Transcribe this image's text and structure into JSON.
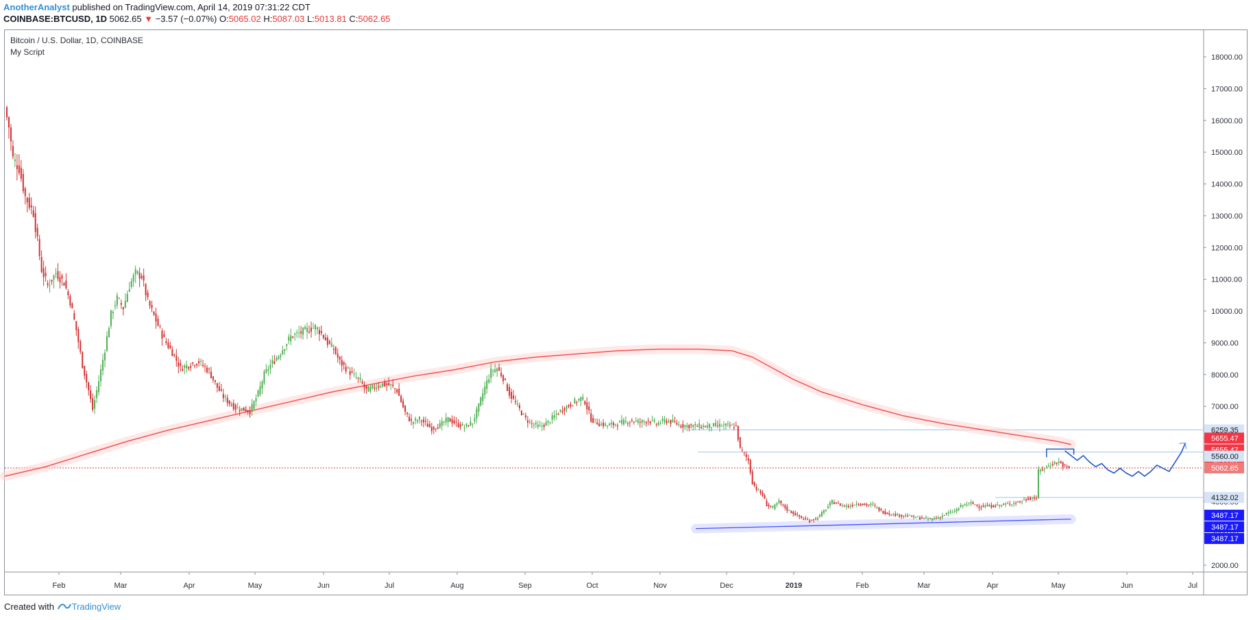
{
  "header": {
    "author": "AnotherAnalyst",
    "published": " published on TradingView.com, April 14, 2019 07:31:22 CDT",
    "symbol": "COINBASE:BTCUSD, 1D",
    "last": "5062.65",
    "change": "−3.57 (−0.07%)",
    "o_label": "O:",
    "o_value": "5065.02",
    "h_label": "H:",
    "h_value": "5087.03",
    "l_label": "L:",
    "l_value": "5013.81",
    "c_label": "C:",
    "c_value": "5062.65"
  },
  "legend": {
    "title": "Bitcoin / U.S. Dollar, 1D, COINBASE",
    "script": "My Script"
  },
  "footer": {
    "created_with": "Created with",
    "brand": "TradingView"
  },
  "colors": {
    "up": "#4caf50",
    "down": "#d32f2f",
    "ma": "#ef5350",
    "support": "#3f51ff",
    "projection": "#1e55c8",
    "price_line": "#e53935",
    "tag_red": "#f23645",
    "tag_blue": "#1a1aff",
    "tag_light": "#d6e4f5"
  },
  "chart_data": {
    "type": "candlestick",
    "title": "Bitcoin / U.S. Dollar, 1D, COINBASE",
    "x_labels": [
      "Feb",
      "Mar",
      "Apr",
      "May",
      "Jun",
      "Jul",
      "Aug",
      "Sep",
      "Oct",
      "Nov",
      "Dec",
      "2019",
      "Feb",
      "Mar",
      "Apr",
      "May",
      "Jun",
      "Jul"
    ],
    "x_label_bold": "2019",
    "y_ticks": [
      2000,
      3000,
      4000,
      5000,
      6000,
      7000,
      8000,
      9000,
      10000,
      11000,
      12000,
      13000,
      14000,
      15000,
      16000,
      17000,
      18000
    ],
    "y_tick_labels": [
      "2000.00",
      "3000.00",
      "4000.00",
      "5000.00",
      "6000.00",
      "7000.00",
      "8000.00",
      "9000.00",
      "10000.00",
      "11000.00",
      "12000.00",
      "13000.00",
      "14000.00",
      "15000.00",
      "16000.00",
      "17000.00",
      "18000.00"
    ],
    "ylim": [
      1900,
      18900
    ],
    "x_range_days": [
      0,
      553
    ],
    "price_close_anchors": [
      [
        0,
        16400
      ],
      [
        2,
        15800
      ],
      [
        4,
        14800
      ],
      [
        7,
        14500
      ],
      [
        10,
        13600
      ],
      [
        14,
        13100
      ],
      [
        18,
        11300
      ],
      [
        21,
        10800
      ],
      [
        25,
        11200
      ],
      [
        29,
        10900
      ],
      [
        32,
        10300
      ],
      [
        35,
        9400
      ],
      [
        38,
        8300
      ],
      [
        41,
        7500
      ],
      [
        43,
        6900
      ],
      [
        46,
        7800
      ],
      [
        49,
        8800
      ],
      [
        52,
        9900
      ],
      [
        55,
        10400
      ],
      [
        58,
        10100
      ],
      [
        61,
        10800
      ],
      [
        64,
        11200
      ],
      [
        67,
        11100
      ],
      [
        70,
        10300
      ],
      [
        74,
        9700
      ],
      [
        78,
        9100
      ],
      [
        82,
        8700
      ],
      [
        86,
        8200
      ],
      [
        90,
        8300
      ],
      [
        95,
        8400
      ],
      [
        100,
        8100
      ],
      [
        104,
        7600
      ],
      [
        107,
        7300
      ],
      [
        110,
        7100
      ],
      [
        113,
        6950
      ],
      [
        117,
        6900
      ],
      [
        120,
        6850
      ],
      [
        124,
        7400
      ],
      [
        127,
        8000
      ],
      [
        130,
        8300
      ],
      [
        134,
        8600
      ],
      [
        137,
        8900
      ],
      [
        140,
        9200
      ],
      [
        144,
        9300
      ],
      [
        148,
        9400
      ],
      [
        152,
        9500
      ],
      [
        155,
        9300
      ],
      [
        158,
        9000
      ],
      [
        161,
        8800
      ],
      [
        164,
        8400
      ],
      [
        167,
        8200
      ],
      [
        170,
        8000
      ],
      [
        174,
        7800
      ],
      [
        177,
        7500
      ],
      [
        181,
        7600
      ],
      [
        185,
        7700
      ],
      [
        189,
        7650
      ],
      [
        192,
        7500
      ],
      [
        196,
        6800
      ],
      [
        199,
        6500
      ],
      [
        203,
        6600
      ],
      [
        206,
        6450
      ],
      [
        209,
        6300
      ],
      [
        213,
        6400
      ],
      [
        217,
        6600
      ],
      [
        221,
        6450
      ],
      [
        225,
        6350
      ],
      [
        229,
        6500
      ],
      [
        232,
        7000
      ],
      [
        235,
        7600
      ],
      [
        238,
        8100
      ],
      [
        241,
        8200
      ],
      [
        244,
        7900
      ],
      [
        247,
        7400
      ],
      [
        251,
        7000
      ],
      [
        255,
        6600
      ],
      [
        258,
        6450
      ],
      [
        262,
        6350
      ],
      [
        266,
        6500
      ],
      [
        270,
        6750
      ],
      [
        274,
        6950
      ],
      [
        278,
        7100
      ],
      [
        282,
        7250
      ],
      [
        284,
        7150
      ],
      [
        287,
        6600
      ],
      [
        291,
        6450
      ],
      [
        295,
        6400
      ],
      [
        299,
        6450
      ],
      [
        303,
        6500
      ],
      [
        307,
        6550
      ],
      [
        311,
        6500
      ],
      [
        315,
        6560
      ],
      [
        319,
        6450
      ],
      [
        323,
        6550
      ],
      [
        327,
        6500
      ],
      [
        331,
        6400
      ],
      [
        335,
        6390
      ],
      [
        339,
        6380
      ],
      [
        343,
        6370
      ],
      [
        347,
        6390
      ],
      [
        351,
        6400
      ],
      [
        355,
        6380
      ],
      [
        358,
        6360
      ],
      [
        360,
        5650
      ],
      [
        362,
        5500
      ],
      [
        364,
        5300
      ],
      [
        366,
        4600
      ],
      [
        368,
        4400
      ],
      [
        371,
        4200
      ],
      [
        373,
        3900
      ],
      [
        376,
        3800
      ],
      [
        379,
        4000
      ],
      [
        383,
        3750
      ],
      [
        387,
        3600
      ],
      [
        391,
        3450
      ],
      [
        394,
        3400
      ],
      [
        398,
        3500
      ],
      [
        401,
        3700
      ],
      [
        405,
        4000
      ],
      [
        409,
        3900
      ],
      [
        413,
        3850
      ],
      [
        417,
        3950
      ],
      [
        421,
        3900
      ],
      [
        425,
        3900
      ],
      [
        429,
        3700
      ],
      [
        433,
        3620
      ],
      [
        437,
        3580
      ],
      [
        441,
        3560
      ],
      [
        445,
        3520
      ],
      [
        449,
        3480
      ],
      [
        453,
        3450
      ],
      [
        457,
        3500
      ],
      [
        461,
        3620
      ],
      [
        465,
        3700
      ],
      [
        469,
        3900
      ],
      [
        473,
        3950
      ],
      [
        477,
        3850
      ],
      [
        481,
        3860
      ],
      [
        485,
        3880
      ],
      [
        489,
        3900
      ],
      [
        493,
        3950
      ],
      [
        497,
        4000
      ],
      [
        501,
        4100
      ],
      [
        505,
        4120
      ],
      [
        506,
        4950
      ],
      [
        508,
        5020
      ],
      [
        510,
        5100
      ],
      [
        513,
        5200
      ],
      [
        516,
        5250
      ],
      [
        519,
        5100
      ],
      [
        521,
        5062.65
      ]
    ],
    "ma_series": {
      "name": "",
      "points": [
        [
          0,
          4800
        ],
        [
          20,
          5100
        ],
        [
          40,
          5500
        ],
        [
          60,
          5900
        ],
        [
          80,
          6250
        ],
        [
          100,
          6550
        ],
        [
          120,
          6850
        ],
        [
          140,
          7150
        ],
        [
          160,
          7450
        ],
        [
          180,
          7700
        ],
        [
          200,
          7950
        ],
        [
          220,
          8150
        ],
        [
          240,
          8400
        ],
        [
          260,
          8550
        ],
        [
          280,
          8650
        ],
        [
          300,
          8750
        ],
        [
          320,
          8800
        ],
        [
          340,
          8800
        ],
        [
          356,
          8750
        ],
        [
          366,
          8550
        ],
        [
          376,
          8200
        ],
        [
          386,
          7850
        ],
        [
          400,
          7450
        ],
        [
          420,
          7050
        ],
        [
          440,
          6700
        ],
        [
          460,
          6450
        ],
        [
          480,
          6250
        ],
        [
          500,
          6050
        ],
        [
          515,
          5900
        ],
        [
          522,
          5800
        ]
      ]
    },
    "support_line": {
      "points": [
        [
          340,
          3150
        ],
        [
          522,
          3450
        ]
      ]
    },
    "projection_path": {
      "points": [
        [
          519,
          5600
        ],
        [
          522,
          5450
        ],
        [
          525,
          5300
        ],
        [
          528,
          5450
        ],
        [
          531,
          5250
        ],
        [
          534,
          5100
        ],
        [
          537,
          5200
        ],
        [
          540,
          5000
        ],
        [
          543,
          4900
        ],
        [
          546,
          5050
        ],
        [
          549,
          4900
        ],
        [
          552,
          4800
        ],
        [
          555,
          4950
        ],
        [
          558,
          4800
        ],
        [
          561,
          4950
        ],
        [
          564,
          5150
        ],
        [
          567,
          5050
        ],
        [
          570,
          4950
        ],
        [
          573,
          5250
        ],
        [
          576,
          5550
        ],
        [
          578,
          5850
        ]
      ]
    },
    "resistance_box": {
      "points": [
        [
          510,
          5655.47
        ],
        [
          522,
          5655.47
        ]
      ]
    },
    "h_levels": [
      {
        "value": 6259.35,
        "label": "6259.35"
      },
      {
        "value": 5560.0,
        "label": "5560.00"
      },
      {
        "value": 4132.02,
        "label": "4132.02"
      }
    ],
    "last_price": 5062.65,
    "price_tags": [
      {
        "label": "6259.35",
        "value": 6259.35,
        "style": "light"
      },
      {
        "label": "5655.47",
        "value": 5655.47,
        "style": "red"
      },
      {
        "label": "5655.47",
        "value": 5655.47,
        "style": "red",
        "offset": 1
      },
      {
        "label": "5655.47",
        "value": 5655.47,
        "style": "red",
        "offset": 2
      },
      {
        "label": "5560.00",
        "value": 5560.0,
        "style": "light"
      },
      {
        "label": "5062.65",
        "value": 5062.65,
        "style": "last"
      },
      {
        "label": "4132.02",
        "value": 4132.02,
        "style": "light"
      },
      {
        "label": "3487.17",
        "value": 3487.17,
        "style": "blue"
      },
      {
        "label": "3487.17",
        "value": 3487.17,
        "style": "blue",
        "offset": 1
      },
      {
        "label": "3487.17",
        "value": 3487.17,
        "style": "blue",
        "offset": 2
      }
    ]
  }
}
